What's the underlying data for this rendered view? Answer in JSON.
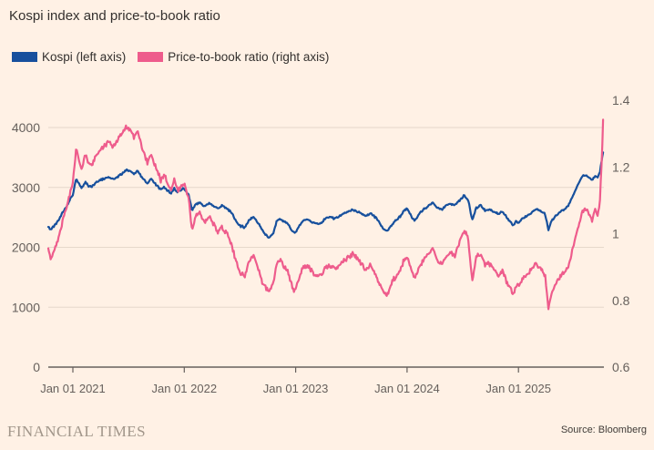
{
  "title": "Kospi index and price-to-book ratio",
  "legend": [
    {
      "label": "Kospi (left axis)",
      "color": "#17509d"
    },
    {
      "label": "Price-to-book ratio (right axis)",
      "color": "#ee5c8c"
    }
  ],
  "footer": {
    "brand": "FINANCIAL TIMES",
    "source": "Source: Bloomberg"
  },
  "colors": {
    "background": "#fff1e5",
    "kospi_line": "#17509d",
    "pb_line": "#ee5c8c",
    "grid": "#e6d8cb",
    "axis": "#66605c",
    "title_text": "#33302e",
    "brand_text": "#a1968a",
    "source_text": "#403c38"
  },
  "chart_data": {
    "type": "line",
    "title": "Kospi index and price-to-book ratio",
    "grid": "horizontal only",
    "legend_position": "top-left",
    "x_unit": "years relative to Jan 01 2021; data spans ~Oct 2020 to ~Oct 2025",
    "x_axis": {
      "ticks": [
        {
          "t": 0,
          "label": "Jan 01 2021"
        },
        {
          "t": 1,
          "label": "Jan 01 2022"
        },
        {
          "t": 2,
          "label": "Jan 01 2023"
        },
        {
          "t": 3,
          "label": "Jan 01 2024"
        },
        {
          "t": 4,
          "label": "Jan 01 2025"
        }
      ]
    },
    "left_axis": {
      "name": "Kospi index",
      "range_at_gridlines": [
        0,
        4000
      ],
      "ticks": [
        {
          "value": 0,
          "label": "0"
        },
        {
          "value": 1000,
          "label": "1000"
        },
        {
          "value": 2000,
          "label": "2000"
        },
        {
          "value": 3000,
          "label": "3000"
        },
        {
          "value": 4000,
          "label": "4000"
        }
      ]
    },
    "right_axis": {
      "name": "Price-to-book ratio",
      "range": [
        0.6,
        1.4
      ],
      "ticks": [
        {
          "value": 0.6,
          "label": "0.6"
        },
        {
          "value": 0.8,
          "label": "0.8"
        },
        {
          "value": 1,
          "label": "1"
        },
        {
          "value": 1.2,
          "label": "1.2"
        },
        {
          "value": 1.4,
          "label": "1.4"
        }
      ]
    },
    "series": [
      {
        "id": "kospi",
        "name": "Kospi (left axis)",
        "axis": "left",
        "color": "#17509d",
        "points": [
          [
            -0.221,
            2350
          ],
          [
            -0.2,
            2295
          ],
          [
            -0.17,
            2360
          ],
          [
            -0.13,
            2450
          ],
          [
            -0.09,
            2590
          ],
          [
            -0.05,
            2700
          ],
          [
            -0.02,
            2820
          ],
          [
            0,
            2873
          ],
          [
            0.03,
            3148
          ],
          [
            0.055,
            3060
          ],
          [
            0.08,
            2990
          ],
          [
            0.11,
            3090
          ],
          [
            0.14,
            3030
          ],
          [
            0.17,
            3010
          ],
          [
            0.2,
            3070
          ],
          [
            0.24,
            3120
          ],
          [
            0.28,
            3145
          ],
          [
            0.32,
            3170
          ],
          [
            0.36,
            3130
          ],
          [
            0.4,
            3180
          ],
          [
            0.44,
            3220
          ],
          [
            0.48,
            3300
          ],
          [
            0.52,
            3270
          ],
          [
            0.55,
            3230
          ],
          [
            0.58,
            3280
          ],
          [
            0.61,
            3200
          ],
          [
            0.64,
            3120
          ],
          [
            0.67,
            3060
          ],
          [
            0.7,
            3140
          ],
          [
            0.73,
            3080
          ],
          [
            0.76,
            3020
          ],
          [
            0.79,
            2960
          ],
          [
            0.82,
            3010
          ],
          [
            0.85,
            2950
          ],
          [
            0.88,
            2900
          ],
          [
            0.91,
            2980
          ],
          [
            0.94,
            2920
          ],
          [
            0.97,
            2960
          ],
          [
            1,
            2980
          ],
          [
            1.04,
            2870
          ],
          [
            1.07,
            2615
          ],
          [
            1.1,
            2720
          ],
          [
            1.14,
            2740
          ],
          [
            1.18,
            2680
          ],
          [
            1.22,
            2740
          ],
          [
            1.26,
            2700
          ],
          [
            1.3,
            2640
          ],
          [
            1.34,
            2700
          ],
          [
            1.38,
            2650
          ],
          [
            1.42,
            2590
          ],
          [
            1.46,
            2450
          ],
          [
            1.5,
            2360
          ],
          [
            1.54,
            2330
          ],
          [
            1.58,
            2450
          ],
          [
            1.62,
            2510
          ],
          [
            1.66,
            2420
          ],
          [
            1.7,
            2290
          ],
          [
            1.74,
            2190
          ],
          [
            1.76,
            2155
          ],
          [
            1.8,
            2250
          ],
          [
            1.83,
            2440
          ],
          [
            1.86,
            2470
          ],
          [
            1.9,
            2420
          ],
          [
            1.93,
            2400
          ],
          [
            1.96,
            2290
          ],
          [
            1.99,
            2230
          ],
          [
            2.03,
            2350
          ],
          [
            2.07,
            2450
          ],
          [
            2.11,
            2470
          ],
          [
            2.15,
            2420
          ],
          [
            2.19,
            2390
          ],
          [
            2.23,
            2410
          ],
          [
            2.27,
            2480
          ],
          [
            2.31,
            2500
          ],
          [
            2.35,
            2480
          ],
          [
            2.39,
            2520
          ],
          [
            2.43,
            2560
          ],
          [
            2.47,
            2590
          ],
          [
            2.51,
            2630
          ],
          [
            2.55,
            2600
          ],
          [
            2.59,
            2560
          ],
          [
            2.63,
            2520
          ],
          [
            2.67,
            2570
          ],
          [
            2.71,
            2510
          ],
          [
            2.75,
            2420
          ],
          [
            2.79,
            2300
          ],
          [
            2.82,
            2270
          ],
          [
            2.86,
            2360
          ],
          [
            2.9,
            2450
          ],
          [
            2.94,
            2520
          ],
          [
            2.97,
            2600
          ],
          [
            3,
            2655
          ],
          [
            3.04,
            2510
          ],
          [
            3.07,
            2450
          ],
          [
            3.11,
            2560
          ],
          [
            3.15,
            2640
          ],
          [
            3.19,
            2680
          ],
          [
            3.23,
            2750
          ],
          [
            3.27,
            2660
          ],
          [
            3.31,
            2630
          ],
          [
            3.35,
            2700
          ],
          [
            3.39,
            2730
          ],
          [
            3.43,
            2700
          ],
          [
            3.47,
            2780
          ],
          [
            3.51,
            2860
          ],
          [
            3.55,
            2790
          ],
          [
            3.585,
            2450
          ],
          [
            3.62,
            2650
          ],
          [
            3.66,
            2700
          ],
          [
            3.7,
            2610
          ],
          [
            3.74,
            2630
          ],
          [
            3.78,
            2590
          ],
          [
            3.82,
            2560
          ],
          [
            3.86,
            2590
          ],
          [
            3.9,
            2490
          ],
          [
            3.93,
            2420
          ],
          [
            3.955,
            2370
          ],
          [
            3.98,
            2440
          ],
          [
            4,
            2400
          ],
          [
            4.04,
            2490
          ],
          [
            4.08,
            2530
          ],
          [
            4.12,
            2590
          ],
          [
            4.16,
            2640
          ],
          [
            4.2,
            2610
          ],
          [
            4.24,
            2550
          ],
          [
            4.268,
            2293
          ],
          [
            4.3,
            2450
          ],
          [
            4.34,
            2540
          ],
          [
            4.38,
            2600
          ],
          [
            4.42,
            2640
          ],
          [
            4.45,
            2700
          ],
          [
            4.48,
            2830
          ],
          [
            4.51,
            2950
          ],
          [
            4.54,
            3070
          ],
          [
            4.57,
            3180
          ],
          [
            4.6,
            3210
          ],
          [
            4.63,
            3170
          ],
          [
            4.66,
            3120
          ],
          [
            4.69,
            3200
          ],
          [
            4.71,
            3150
          ],
          [
            4.73,
            3250
          ],
          [
            4.745,
            3420
          ],
          [
            4.76,
            3590
          ]
        ]
      },
      {
        "id": "pb",
        "name": "Price-to-book ratio (right axis)",
        "axis": "right",
        "color": "#ee5c8c",
        "points": [
          [
            -0.221,
            0.96
          ],
          [
            -0.2,
            0.925
          ],
          [
            -0.17,
            0.95
          ],
          [
            -0.13,
            0.985
          ],
          [
            -0.09,
            1.04
          ],
          [
            -0.05,
            1.085
          ],
          [
            -0.02,
            1.13
          ],
          [
            0,
            1.15
          ],
          [
            0.03,
            1.26
          ],
          [
            0.055,
            1.22
          ],
          [
            0.08,
            1.19
          ],
          [
            0.11,
            1.24
          ],
          [
            0.14,
            1.21
          ],
          [
            0.17,
            1.2
          ],
          [
            0.2,
            1.23
          ],
          [
            0.24,
            1.25
          ],
          [
            0.28,
            1.26
          ],
          [
            0.32,
            1.28
          ],
          [
            0.36,
            1.26
          ],
          [
            0.4,
            1.28
          ],
          [
            0.44,
            1.3
          ],
          [
            0.48,
            1.32
          ],
          [
            0.52,
            1.31
          ],
          [
            0.55,
            1.29
          ],
          [
            0.58,
            1.31
          ],
          [
            0.61,
            1.27
          ],
          [
            0.64,
            1.24
          ],
          [
            0.67,
            1.21
          ],
          [
            0.7,
            1.24
          ],
          [
            0.73,
            1.21
          ],
          [
            0.76,
            1.19
          ],
          [
            0.79,
            1.16
          ],
          [
            0.82,
            1.18
          ],
          [
            0.85,
            1.15
          ],
          [
            0.88,
            1.13
          ],
          [
            0.91,
            1.16
          ],
          [
            0.94,
            1.13
          ],
          [
            0.97,
            1.145
          ],
          [
            1,
            1.15
          ],
          [
            1.04,
            1.1
          ],
          [
            1.07,
            1.01
          ],
          [
            1.1,
            1.05
          ],
          [
            1.14,
            1.06
          ],
          [
            1.18,
            1.03
          ],
          [
            1.22,
            1.05
          ],
          [
            1.26,
            1.03
          ],
          [
            1.3,
            1.005
          ],
          [
            1.34,
            1.02
          ],
          [
            1.38,
            1
          ],
          [
            1.42,
            0.975
          ],
          [
            1.46,
            0.92
          ],
          [
            1.5,
            0.885
          ],
          [
            1.54,
            0.87
          ],
          [
            1.58,
            0.915
          ],
          [
            1.62,
            0.935
          ],
          [
            1.66,
            0.9
          ],
          [
            1.7,
            0.855
          ],
          [
            1.74,
            0.835
          ],
          [
            1.76,
            0.822
          ],
          [
            1.8,
            0.855
          ],
          [
            1.83,
            0.91
          ],
          [
            1.86,
            0.92
          ],
          [
            1.9,
            0.9
          ],
          [
            1.93,
            0.89
          ],
          [
            1.96,
            0.85
          ],
          [
            1.99,
            0.828
          ],
          [
            2.03,
            0.865
          ],
          [
            2.07,
            0.9
          ],
          [
            2.11,
            0.905
          ],
          [
            2.15,
            0.885
          ],
          [
            2.19,
            0.87
          ],
          [
            2.23,
            0.875
          ],
          [
            2.27,
            0.9
          ],
          [
            2.31,
            0.905
          ],
          [
            2.35,
            0.895
          ],
          [
            2.39,
            0.905
          ],
          [
            2.43,
            0.92
          ],
          [
            2.47,
            0.93
          ],
          [
            2.51,
            0.94
          ],
          [
            2.55,
            0.925
          ],
          [
            2.59,
            0.91
          ],
          [
            2.63,
            0.89
          ],
          [
            2.67,
            0.905
          ],
          [
            2.71,
            0.88
          ],
          [
            2.75,
            0.85
          ],
          [
            2.79,
            0.825
          ],
          [
            2.82,
            0.815
          ],
          [
            2.86,
            0.85
          ],
          [
            2.9,
            0.875
          ],
          [
            2.94,
            0.895
          ],
          [
            2.97,
            0.92
          ],
          [
            3,
            0.93
          ],
          [
            3.04,
            0.885
          ],
          [
            3.07,
            0.865
          ],
          [
            3.11,
            0.9
          ],
          [
            3.15,
            0.925
          ],
          [
            3.19,
            0.935
          ],
          [
            3.23,
            0.955
          ],
          [
            3.27,
            0.92
          ],
          [
            3.31,
            0.91
          ],
          [
            3.35,
            0.93
          ],
          [
            3.39,
            0.945
          ],
          [
            3.43,
            0.935
          ],
          [
            3.47,
            0.975
          ],
          [
            3.51,
            1.01
          ],
          [
            3.55,
            0.985
          ],
          [
            3.585,
            0.855
          ],
          [
            3.62,
            0.93
          ],
          [
            3.66,
            0.94
          ],
          [
            3.7,
            0.905
          ],
          [
            3.74,
            0.91
          ],
          [
            3.78,
            0.895
          ],
          [
            3.82,
            0.875
          ],
          [
            3.86,
            0.885
          ],
          [
            3.9,
            0.85
          ],
          [
            3.93,
            0.83
          ],
          [
            3.955,
            0.815
          ],
          [
            3.98,
            0.845
          ],
          [
            4,
            0.84
          ],
          [
            4.04,
            0.865
          ],
          [
            4.08,
            0.875
          ],
          [
            4.12,
            0.895
          ],
          [
            4.16,
            0.91
          ],
          [
            4.2,
            0.895
          ],
          [
            4.24,
            0.87
          ],
          [
            4.268,
            0.775
          ],
          [
            4.3,
            0.825
          ],
          [
            4.34,
            0.855
          ],
          [
            4.38,
            0.875
          ],
          [
            4.42,
            0.885
          ],
          [
            4.45,
            0.905
          ],
          [
            4.48,
            0.945
          ],
          [
            4.51,
            0.985
          ],
          [
            4.54,
            1.02
          ],
          [
            4.57,
            1.06
          ],
          [
            4.6,
            1.075
          ],
          [
            4.63,
            1.06
          ],
          [
            4.66,
            1.04
          ],
          [
            4.69,
            1.075
          ],
          [
            4.71,
            1.055
          ],
          [
            4.73,
            1.09
          ],
          [
            4.745,
            1.2
          ],
          [
            4.76,
            1.335
          ]
        ]
      }
    ]
  }
}
